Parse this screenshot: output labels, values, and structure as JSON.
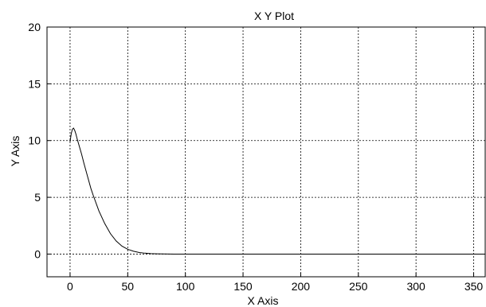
{
  "chart_data": {
    "type": "line",
    "title": "X Y Plot",
    "xlabel": "X Axis",
    "ylabel": "Y Axis",
    "xlim": [
      -20,
      360
    ],
    "ylim": [
      -2,
      20
    ],
    "x_ticks": [
      0,
      50,
      100,
      150,
      200,
      250,
      300,
      350
    ],
    "y_ticks": [
      0,
      5,
      10,
      15,
      20
    ],
    "grid": true,
    "line_color": "#000000",
    "series": [
      {
        "x": [
          0,
          1,
          2,
          3,
          4,
          5,
          6,
          8,
          10,
          12,
          15,
          18,
          20,
          25,
          30,
          35,
          40,
          45,
          50,
          55,
          60,
          65,
          70,
          75,
          80,
          90,
          100,
          150,
          200,
          250,
          300,
          350,
          360
        ],
        "values": [
          9.9,
          10.6,
          11.0,
          11.1,
          10.9,
          10.6,
          10.2,
          9.5,
          8.8,
          8.0,
          6.9,
          5.8,
          5.2,
          3.8,
          2.7,
          1.8,
          1.15,
          0.7,
          0.42,
          0.25,
          0.14,
          0.08,
          0.04,
          0.02,
          0.01,
          0.0,
          0.0,
          0.0,
          0.0,
          0.0,
          0.0,
          0.0,
          0.0
        ]
      }
    ]
  }
}
